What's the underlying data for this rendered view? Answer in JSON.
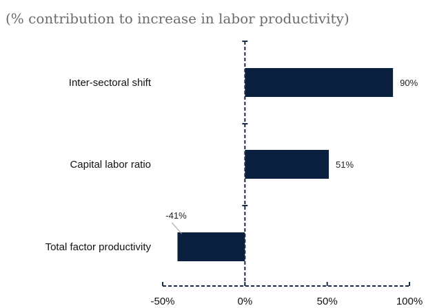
{
  "chart_data": {
    "type": "bar",
    "orientation": "horizontal",
    "title": "(% contribution to increase in labor productivity)",
    "categories": [
      "Inter-sectoral shift",
      "Capital labor ratio",
      "Total factor productivity"
    ],
    "values": [
      90,
      51,
      -41
    ],
    "data_labels": [
      "90%",
      "51%",
      "-41%"
    ],
    "xlim": [
      -50,
      100
    ],
    "xticks": [
      -50,
      0,
      50,
      100
    ],
    "xtick_labels": [
      "-50%",
      "0%",
      "50%",
      "100%"
    ],
    "xlabel": "",
    "ylabel": "",
    "grid": false,
    "legend": "none",
    "bar_color": "#0b1f3f",
    "axis_color": "#1a2a44"
  }
}
